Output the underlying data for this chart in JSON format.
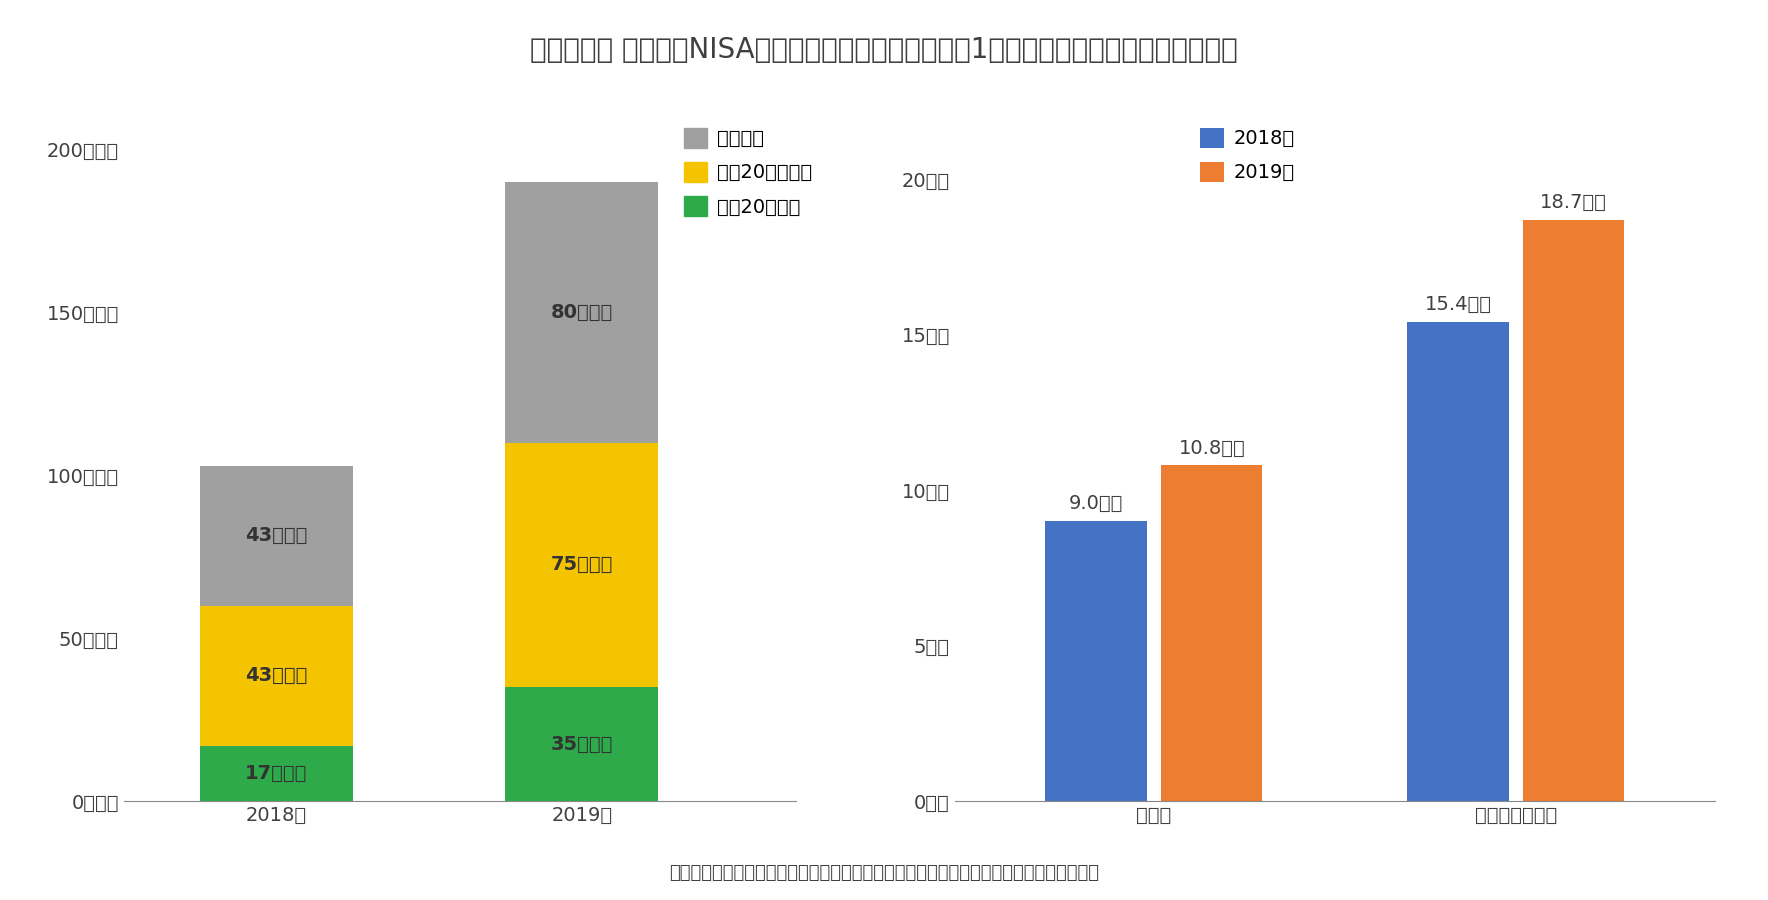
{
  "title": "》図表１》 つみたてNISAの買付額別口座数（左）と、1口座あたりの平均買付金額（右）",
  "left_chart": {
    "categories": [
      "2018年",
      "2019年"
    ],
    "green_values": [
      17,
      35
    ],
    "yellow_values": [
      43,
      75
    ],
    "gray_values": [
      43,
      80
    ],
    "green_color": "#2eaa4a",
    "yellow_color": "#f5c400",
    "gray_color": "#a0a0a0",
    "green_label": "買付20万円超",
    "yellow_label": "買付20万円以下",
    "gray_label": "買付なし",
    "yticks": [
      0,
      50,
      100,
      150,
      200
    ],
    "ytick_labels": [
      "0万口座",
      "50万口座",
      "100万口座",
      "150万口座",
      "200万口座"
    ],
    "ylim": [
      0,
      210
    ],
    "bar_labels_green": [
      "17万口座",
      "35万口座"
    ],
    "bar_labels_yellow": [
      "43万口座",
      "75万口座"
    ],
    "bar_labels_gray": [
      "43万口座",
      "80万口座"
    ]
  },
  "right_chart": {
    "group_labels": [
      "全口座",
      "未買付口座除外"
    ],
    "values_2018": [
      9.0,
      15.4
    ],
    "values_2019": [
      10.8,
      18.7
    ],
    "color_2018": "#4472c4",
    "color_2019": "#ed7d31",
    "label_2018": "2018年",
    "label_2019": "2019年",
    "yticks": [
      0,
      5,
      10,
      15,
      20
    ],
    "ytick_labels": [
      "0万円",
      "5万円",
      "10万円",
      "15万円",
      "20万円"
    ],
    "ylim": [
      0,
      22
    ],
    "bar_annotations": {
      "group0_2018": "9.0万円",
      "group0_2019": "10.8万円",
      "group1_2018": "15.4万円",
      "group1_2019": "18.7万円"
    }
  },
  "footnote": "（資料）金融庁公表資料より作成。各年の口座数は各年末時点で廃止された口座を含む。",
  "background_color": "#ffffff",
  "text_color": "#404040",
  "title_fontsize": 20,
  "tick_fontsize": 14,
  "bar_label_fontsize": 14,
  "legend_fontsize": 14,
  "footnote_fontsize": 13
}
